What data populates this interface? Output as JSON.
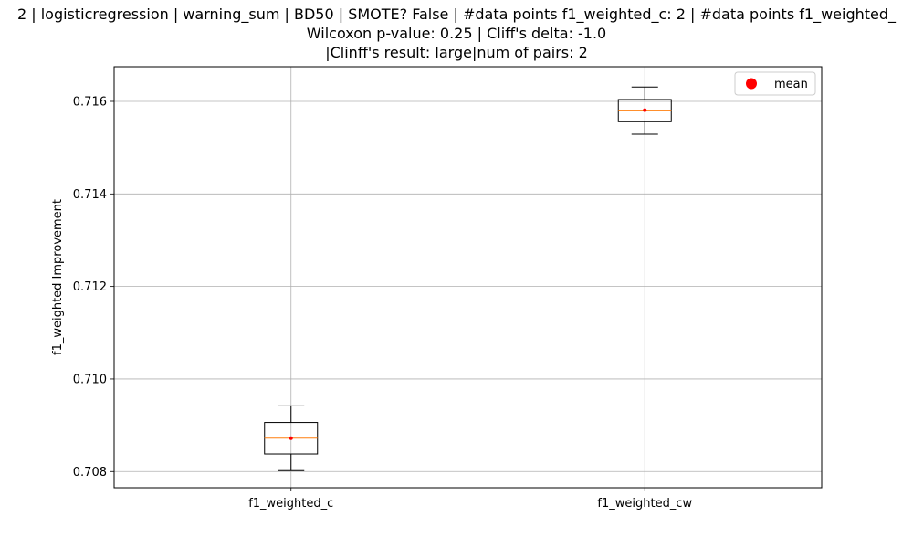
{
  "chart_data": {
    "type": "box",
    "title_lines": [
      "2 | logisticregression | warning_sum | BD50 | SMOTE? False | #data points f1_weighted_c: 2 | #data points f1_weighted_",
      "Wilcoxon p-value: 0.25 | Cliff's delta: -1.0",
      "|Clinff's result: large|num of pairs: 2"
    ],
    "ylabel": "f1_weighted Improvement",
    "xlabel": "",
    "ylim": [
      0.70765,
      0.71675
    ],
    "yticks": [
      0.708,
      0.71,
      0.712,
      0.714,
      0.716
    ],
    "ytick_labels": [
      "0.708",
      "0.710",
      "0.712",
      "0.714",
      "0.716"
    ],
    "grid": true,
    "legend": {
      "placement": "upper-right",
      "entries": [
        {
          "label": "mean",
          "color": "#ff0000"
        }
      ]
    },
    "colors": {
      "box": "#000000",
      "median": "#ff7f0e",
      "mean": "#ff0000",
      "grid": "#b0b0b0"
    },
    "categories": [
      "f1_weighted_c",
      "f1_weighted_cw"
    ],
    "boxes": [
      {
        "name": "f1_weighted_c",
        "whisker_low": 0.70802,
        "q1": 0.70838,
        "median": 0.70872,
        "q3": 0.70906,
        "whisker_high": 0.70942,
        "mean": 0.70872
      },
      {
        "name": "f1_weighted_cw",
        "whisker_low": 0.71529,
        "q1": 0.71556,
        "median": 0.71581,
        "q3": 0.71604,
        "whisker_high": 0.71631,
        "mean": 0.71581
      }
    ]
  }
}
